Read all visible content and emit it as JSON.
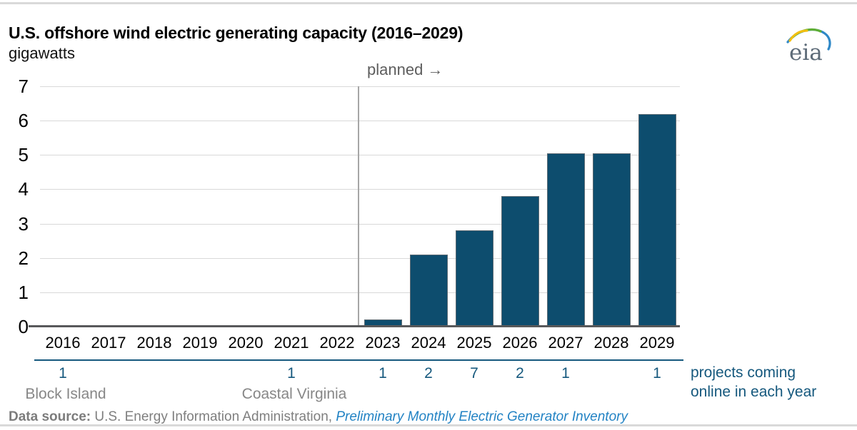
{
  "header": {
    "title": "U.S. offshore wind electric generating capacity (2016–2029)",
    "unit_label": "gigawatts",
    "logo_text": "eia"
  },
  "chart_data": {
    "type": "bar",
    "title": "U.S. offshore wind electric generating capacity (2016–2029)",
    "ylabel": "gigawatts",
    "ylim": [
      0,
      7
    ],
    "yticks": [
      0,
      1,
      2,
      3,
      4,
      5,
      6,
      7
    ],
    "grid": true,
    "categories": [
      "2016",
      "2017",
      "2018",
      "2019",
      "2020",
      "2021",
      "2022",
      "2023",
      "2024",
      "2025",
      "2026",
      "2027",
      "2028",
      "2029"
    ],
    "values": [
      0.03,
      0.03,
      0.03,
      0.03,
      0.03,
      0.04,
      0.04,
      0.2,
      2.1,
      2.8,
      3.8,
      5.05,
      5.05,
      6.2
    ],
    "bar_color": "#0d4d6e",
    "planned_divider_after_category": "2022",
    "annotations": {
      "planned_label": "planned →",
      "project_counts": [
        "1",
        "",
        "",
        "",
        "",
        "1",
        "",
        "1",
        "2",
        "7",
        "2",
        "1",
        "",
        "1"
      ],
      "project_counts_label": "projects coming online in each year",
      "category_notes": [
        {
          "category": "2016",
          "label": "Block Island"
        },
        {
          "category": "2021",
          "label": "Coastal Virginia"
        }
      ]
    }
  },
  "footer": {
    "source_prefix": "Data source:",
    "source_text": " U.S. Energy Information Administration, ",
    "source_link": "Preliminary Monthly Electric Generator Inventory"
  },
  "colors": {
    "bar": "#0d4d6e",
    "accent_blue": "#15587d",
    "link_blue": "#2383c4",
    "gridline": "#d9d9d9",
    "axis_line": "#58595b",
    "note_gray": "#878787",
    "logo_yellow": "#f3c011",
    "logo_green": "#5fae36",
    "logo_blue": "#2f88c7"
  }
}
